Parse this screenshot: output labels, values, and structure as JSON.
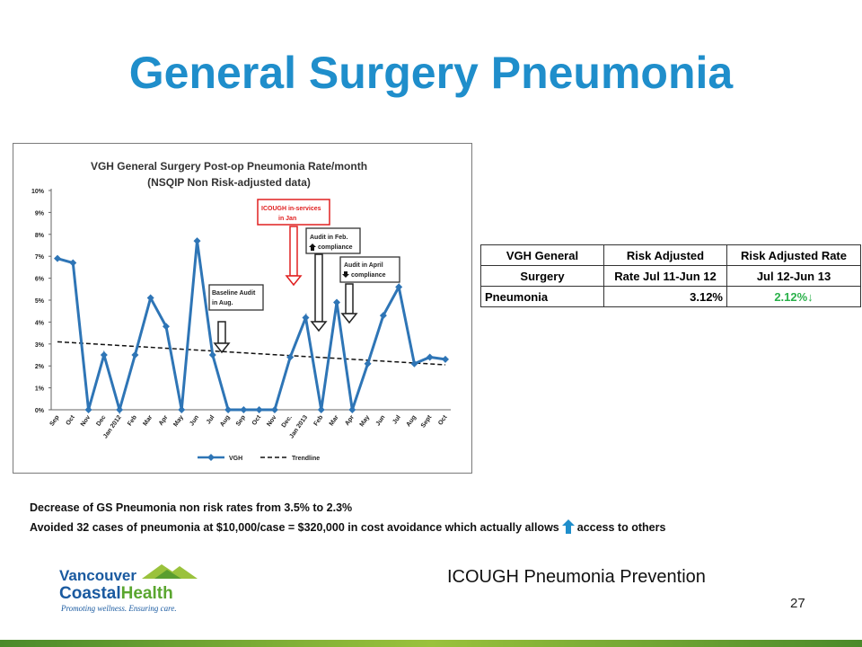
{
  "slide": {
    "title": "General Surgery Pneumonia",
    "subtitle": "ICOUGH Pneumonia Prevention",
    "page_number": "27",
    "notes": [
      "Decrease of GS Pneumonia non risk rates from 3.5% to 2.3%",
      "Avoided 32 cases of pneumonia  at  $10,000/case = $320,000 in cost avoidance which actually allows",
      "access to others"
    ],
    "colors": {
      "title": "#1f8ecb",
      "series": "#2e75b6",
      "green": "#2ab14a",
      "red_arrow": "#e02020"
    }
  },
  "logo": {
    "line1": "Vancouver",
    "line2a": "Coastal",
    "line2b": "Health",
    "tagline": "Promoting wellness. Ensuring care."
  },
  "table": {
    "headers": [
      [
        "VGH General",
        "Risk Adjusted",
        "Risk Adjusted Rate"
      ],
      [
        "Surgery",
        "Rate Jul 11-Jun 12",
        "Jul 12-Jun 13"
      ]
    ],
    "row": {
      "label": "Pneumonia",
      "rate1": "3.12%",
      "rate2": "2.12%↓"
    }
  },
  "chart_data": {
    "type": "line",
    "title": "VGH General Surgery Post-op Pneumonia Rate/month",
    "subtitle": "(NSQIP Non Risk-adjusted data)",
    "categories": [
      "Sep",
      "Oct",
      "Nov",
      "Dec",
      "Jan 2012",
      "Feb",
      "Mar",
      "Apr",
      "May",
      "Jun",
      "Jul",
      "Aug",
      "Sep",
      "Oct",
      "Nov",
      "Dec.",
      "Jan 2013",
      "Feb",
      "Mar",
      "Apr",
      "May",
      "Jun",
      "Jul",
      "Aug",
      "Sept",
      "Oct"
    ],
    "series": [
      {
        "name": "VGH",
        "values": [
          6.9,
          6.7,
          0,
          2.5,
          0,
          2.5,
          5.1,
          3.8,
          0,
          7.7,
          2.5,
          0,
          0,
          0,
          0,
          2.4,
          4.2,
          0,
          4.9,
          0,
          2.1,
          4.3,
          5.6,
          2.1,
          2.4,
          2.3
        ]
      },
      {
        "name": "Trendline",
        "start": 3.1,
        "end": 2.05
      }
    ],
    "yticks": [
      "0%",
      "1%",
      "2%",
      "3%",
      "4%",
      "5%",
      "6%",
      "7%",
      "8%",
      "9%",
      "10%"
    ],
    "ylim": [
      0,
      10
    ],
    "annotations": [
      {
        "id": "baseline",
        "lines": [
          "Baseline Audit",
          "in Aug."
        ],
        "at_index": 10.5
      },
      {
        "id": "icough",
        "lines": [
          "ICOUGH in-services",
          "in Jan"
        ],
        "at_index": 16
      },
      {
        "id": "audit-feb",
        "lines": [
          "Audit in Feb.",
          "compliance"
        ],
        "arrow": "up",
        "at_index": 17
      },
      {
        "id": "audit-apr",
        "lines": [
          "Audit in April",
          "compliance"
        ],
        "arrow": "down",
        "at_index": 19
      }
    ],
    "legend": [
      "VGH",
      "Trendline"
    ]
  }
}
